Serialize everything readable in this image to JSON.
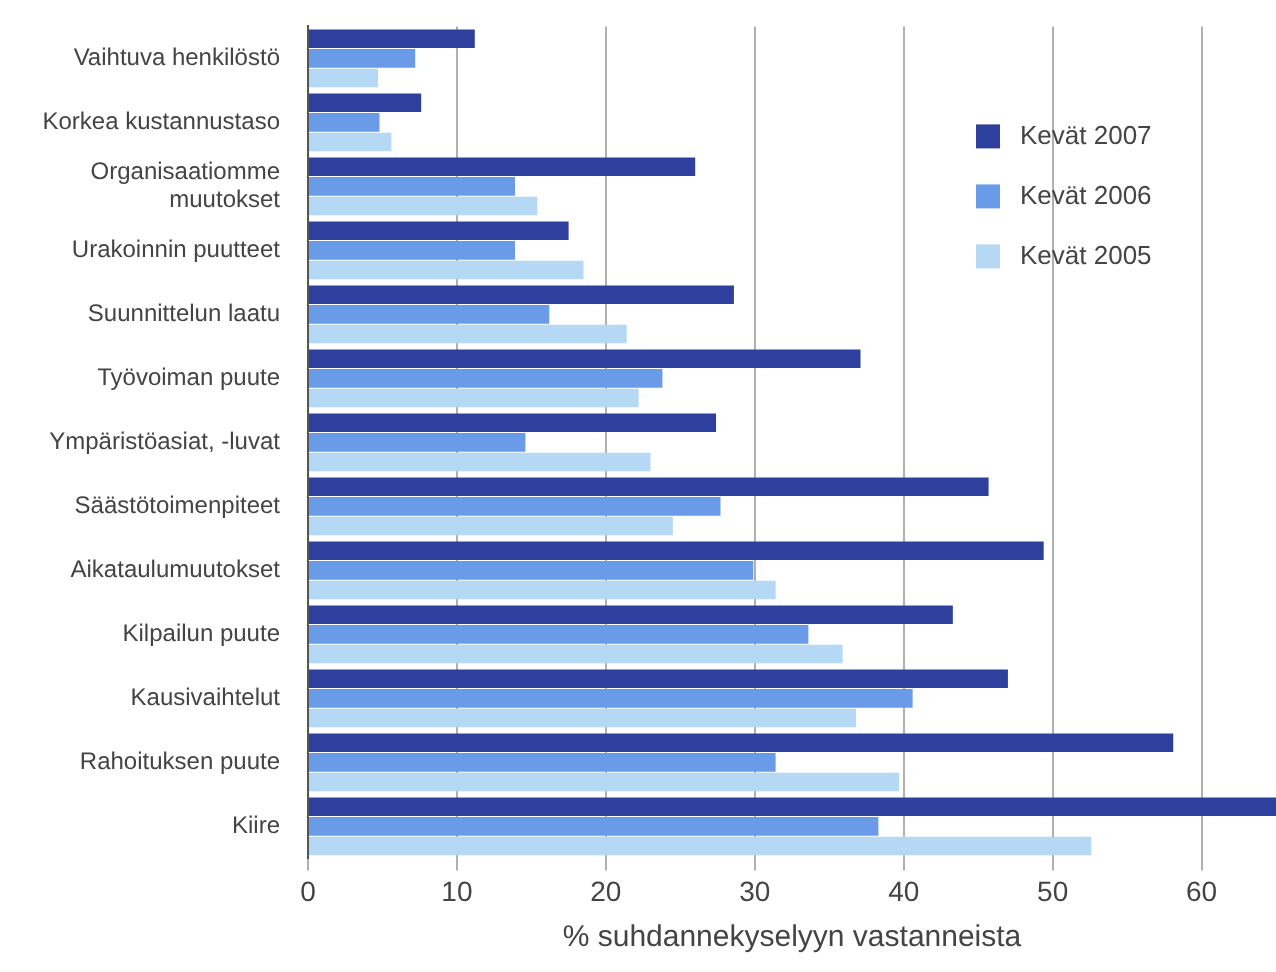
{
  "chart_data": {
    "type": "bar",
    "orientation": "horizontal",
    "xlabel": "% suhdannekyselyyn vastanneista",
    "categories": [
      "Vaihtuva henkilöstö",
      "Korkea kustannustaso",
      "Organisaatiomme muutokset",
      "Urakoinnin puutteet",
      "Suunnittelun laatu",
      "Työvoiman puute",
      "Ympäristöasiat, -luvat",
      "Säästötoimenpiteet",
      "Aikataulumuutokset",
      "Kilpailun puute",
      "Kausivaihtelut",
      "Rahoituksen puute",
      "Kiire"
    ],
    "series": [
      {
        "name": "Kevät 2007",
        "color": "#2e3f9e",
        "values": [
          11.2,
          7.6,
          26.0,
          17.5,
          28.6,
          37.1,
          27.4,
          45.7,
          49.4,
          43.3,
          47.0,
          58.1,
          65
        ]
      },
      {
        "name": "Kevät 2006",
        "color": "#6a9be8",
        "values": [
          7.2,
          4.8,
          13.9,
          13.9,
          16.2,
          23.8,
          14.6,
          27.7,
          29.9,
          33.6,
          40.6,
          31.4,
          38.3
        ]
      },
      {
        "name": "Kevät 2005",
        "color": "#b5d8f5",
        "values": [
          4.7,
          5.6,
          15.4,
          18.5,
          21.4,
          22.2,
          23.0,
          24.5,
          31.4,
          35.9,
          36.8,
          39.7,
          52.6
        ]
      }
    ],
    "xlim": [
      0,
      65
    ],
    "xticks": [
      0,
      10,
      20,
      30,
      40,
      50,
      60
    ],
    "grid": "x",
    "legend": "top right"
  }
}
